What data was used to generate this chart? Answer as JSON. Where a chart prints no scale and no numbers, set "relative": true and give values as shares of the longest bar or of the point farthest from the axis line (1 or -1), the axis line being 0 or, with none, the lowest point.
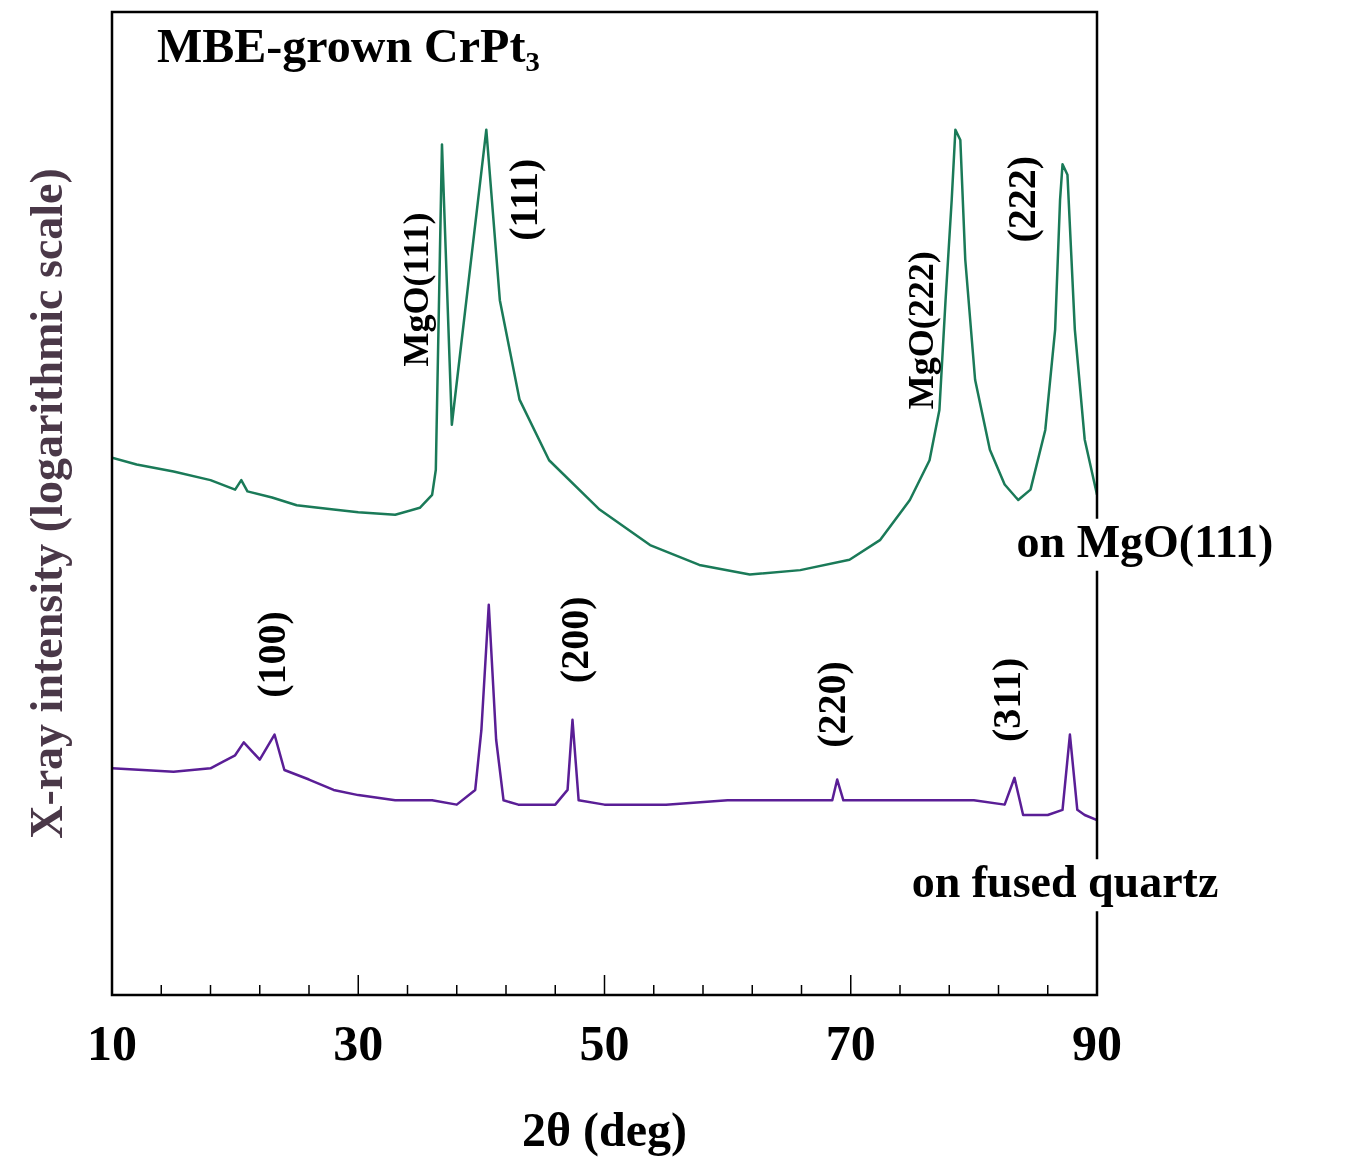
{
  "chart_data": {
    "type": "line",
    "title": "MBE-grown CrPt₃",
    "xlabel": "2θ (deg)",
    "ylabel": "X-ray intensity (logarithmic scale)",
    "relative": true,
    "legend": false,
    "marker": "none",
    "line_style": "solid",
    "xlim": [
      10,
      90
    ],
    "xticks": [
      10,
      {
        "value": 14,
        "label": null
      },
      {
        "value": 18,
        "label": null
      },
      {
        "value": 22,
        "label": null
      },
      {
        "value": 26,
        "label": null
      },
      30,
      {
        "value": 34,
        "label": null
      },
      {
        "value": 38,
        "label": null
      },
      {
        "value": 42,
        "label": null
      },
      {
        "value": 46,
        "label": null
      },
      50,
      {
        "value": 54,
        "label": null
      },
      {
        "value": 58,
        "label": null
      },
      {
        "value": 62,
        "label": null
      },
      {
        "value": 66,
        "label": null
      },
      70,
      {
        "value": 74,
        "label": null
      },
      {
        "value": 78,
        "label": null
      },
      {
        "value": 82,
        "label": null
      },
      {
        "value": 86,
        "label": null
      },
      90
    ],
    "series": [
      {
        "name": "on MgO(111)",
        "color": "#1a7a58",
        "x": [
          10,
          12,
          15,
          18,
          20,
          20.5,
          21,
          23,
          25,
          28,
          30,
          33,
          35,
          36,
          36.3,
          36.8,
          37.6,
          40.4,
          41.5,
          43.1,
          45.5,
          49.6,
          53.7,
          57.7,
          61.8,
          65.9,
          69.9,
          72.4,
          74.8,
          76.4,
          77.2,
          77.7,
          78.2,
          78.5,
          78.9,
          79.3,
          80.1,
          81.3,
          82.5,
          83.6,
          84.6,
          85.8,
          86.6,
          87.0,
          87.2,
          87.6,
          88.2,
          89.0,
          90
        ],
        "values": [
          0.621,
          0.613,
          0.605,
          0.595,
          0.584,
          0.595,
          0.582,
          0.575,
          0.566,
          0.561,
          0.558,
          0.555,
          0.563,
          0.578,
          0.607,
          0.983,
          0.659,
          1.0,
          0.803,
          0.688,
          0.618,
          0.561,
          0.52,
          0.497,
          0.486,
          0.491,
          0.503,
          0.526,
          0.572,
          0.618,
          0.676,
          0.803,
          0.919,
          1.0,
          0.988,
          0.85,
          0.711,
          0.63,
          0.59,
          0.572,
          0.584,
          0.653,
          0.769,
          0.919,
          0.96,
          0.948,
          0.769,
          0.642,
          0.578
        ]
      },
      {
        "name": "on fused quartz",
        "color": "#5a1e96",
        "x": [
          10,
          15,
          18,
          20,
          20.7,
          22,
          23.2,
          24,
          26,
          28,
          30,
          33,
          36,
          38,
          39.5,
          40,
          40.6,
          41.2,
          41.8,
          43,
          46,
          47,
          47.4,
          47.9,
          50,
          55,
          60,
          65,
          68.5,
          68.9,
          69.4,
          75,
          80,
          82.5,
          83.3,
          84,
          86,
          87.2,
          87.8,
          88.4,
          89,
          90
        ],
        "values": [
          0.262,
          0.258,
          0.262,
          0.277,
          0.292,
          0.272,
          0.301,
          0.26,
          0.249,
          0.237,
          0.231,
          0.225,
          0.225,
          0.22,
          0.237,
          0.306,
          0.451,
          0.295,
          0.225,
          0.22,
          0.22,
          0.237,
          0.318,
          0.225,
          0.22,
          0.22,
          0.225,
          0.225,
          0.225,
          0.249,
          0.225,
          0.225,
          0.225,
          0.22,
          0.251,
          0.208,
          0.208,
          0.214,
          0.301,
          0.214,
          0.208,
          0.202
        ]
      }
    ],
    "annotations": [
      {
        "text": "MgO(111)",
        "x": 36.8,
        "y": 0.983
      },
      {
        "text": "(111)",
        "x": 40.4,
        "y": 1.0
      },
      {
        "text": "MgO(222)",
        "x": 77.7,
        "y": 0.803
      },
      {
        "text": "(222)",
        "x": 87.2,
        "y": 0.96
      },
      {
        "text": "(100)",
        "x": 23.2,
        "y": 0.301
      },
      {
        "text": "(200)",
        "x": 47.4,
        "y": 0.318
      },
      {
        "text": "(220)",
        "x": 68.9,
        "y": 0.249
      },
      {
        "text": "(311)",
        "x": 83.3,
        "y": 0.251
      }
    ]
  }
}
